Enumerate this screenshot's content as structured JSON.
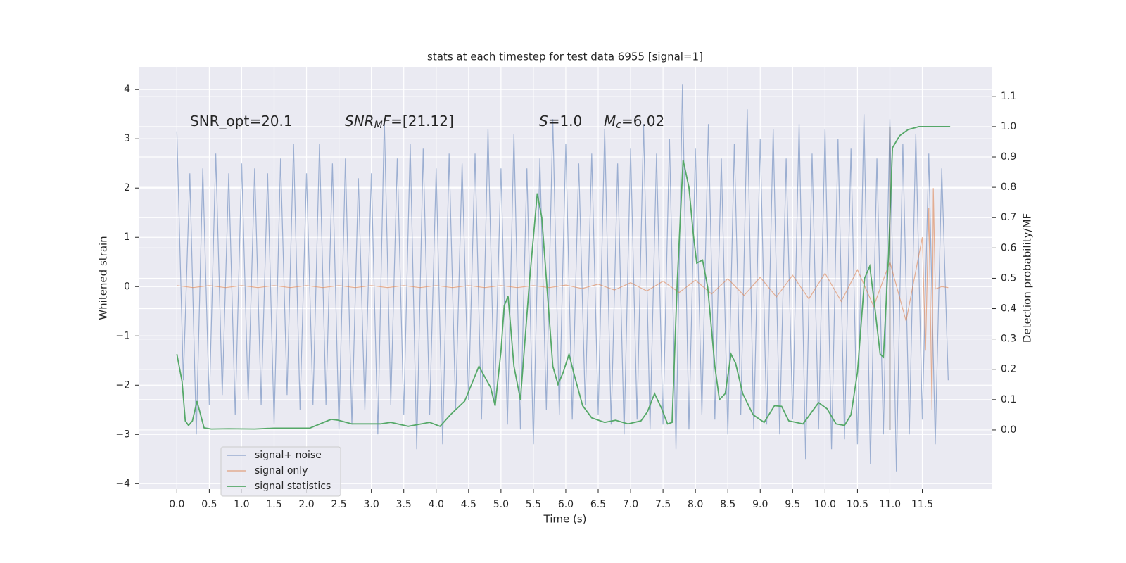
{
  "chart_data": {
    "type": "line",
    "title": "stats at each timestep for test data 6955 [signal=1]",
    "xlabel": "Time (s)",
    "ylabel": "Whitened strain",
    "y2label": "Detection probability/MF",
    "xlim": [
      -0.59,
      12.58
    ],
    "ylim": [
      -4.11,
      4.46
    ],
    "y2lim": [
      -0.195,
      1.197
    ],
    "xticks": [
      {
        "value": 0,
        "label": "0.0"
      },
      {
        "value": 0.5,
        "label": "0.5"
      },
      {
        "value": 1,
        "label": "1.0"
      },
      {
        "value": 1.5,
        "label": "1.5"
      },
      {
        "value": 2,
        "label": "2.0"
      },
      {
        "value": 2.5,
        "label": "2.5"
      },
      {
        "value": 3,
        "label": "3.0"
      },
      {
        "value": 3.5,
        "label": "3.5"
      },
      {
        "value": 4,
        "label": "4.0"
      },
      {
        "value": 4.5,
        "label": "4.5"
      },
      {
        "value": 5,
        "label": "5.0"
      },
      {
        "value": 5.5,
        "label": "5.5"
      },
      {
        "value": 6,
        "label": "6.0"
      },
      {
        "value": 6.5,
        "label": "6.5"
      },
      {
        "value": 7,
        "label": "7.0"
      },
      {
        "value": 7.5,
        "label": "7.5"
      },
      {
        "value": 8,
        "label": "8.0"
      },
      {
        "value": 8.5,
        "label": "8.5"
      },
      {
        "value": 9,
        "label": "9.0"
      },
      {
        "value": 9.5,
        "label": "9.5"
      },
      {
        "value": 10,
        "label": "10.0"
      },
      {
        "value": 10.5,
        "label": "10.5"
      },
      {
        "value": 11,
        "label": "11.0"
      },
      {
        "value": 11.5,
        "label": "11.5"
      }
    ],
    "yticks": [
      {
        "value": -4,
        "label": "−4"
      },
      {
        "value": -3,
        "label": "−3"
      },
      {
        "value": -2,
        "label": "−2"
      },
      {
        "value": -1,
        "label": "−1"
      },
      0,
      1,
      2,
      3,
      4
    ],
    "y2ticks": [
      {
        "value": 0,
        "label": "0.0"
      },
      {
        "value": 0.1,
        "label": "0.1"
      },
      {
        "value": 0.2,
        "label": "0.2"
      },
      {
        "value": 0.3,
        "label": "0.3"
      },
      {
        "value": 0.4,
        "label": "0.4"
      },
      {
        "value": 0.5,
        "label": "0.5"
      },
      {
        "value": 0.6,
        "label": "0.6"
      },
      {
        "value": 0.7,
        "label": "0.7"
      },
      {
        "value": 0.8,
        "label": "0.8"
      },
      {
        "value": 0.9,
        "label": "0.9"
      },
      {
        "value": 1,
        "label": "1.0"
      },
      {
        "value": 1.1,
        "label": "1.1"
      }
    ],
    "grid": true,
    "legend": "lower left",
    "series": [
      {
        "name": "signal+ noise",
        "color": "#4c72b0",
        "x": [
          0,
          0.1,
          0.2,
          0.3,
          0.4,
          0.5,
          0.6,
          0.7,
          0.8,
          0.9,
          1,
          1.1,
          1.2,
          1.3,
          1.4,
          1.5,
          1.6,
          1.7,
          1.8,
          1.9,
          2,
          2.1,
          2.2,
          2.3,
          2.4,
          2.5,
          2.6,
          2.7,
          2.8,
          2.9,
          3,
          3.1,
          3.2,
          3.3,
          3.4,
          3.5,
          3.6,
          3.7,
          3.8,
          3.9,
          4,
          4.1,
          4.2,
          4.3,
          4.4,
          4.5,
          4.6,
          4.7,
          4.8,
          4.9,
          5,
          5.1,
          5.2,
          5.3,
          5.4,
          5.5,
          5.6,
          5.7,
          5.8,
          5.9,
          6,
          6.1,
          6.2,
          6.3,
          6.4,
          6.5,
          6.6,
          6.7,
          6.8,
          6.9,
          7,
          7.1,
          7.2,
          7.3,
          7.4,
          7.5,
          7.6,
          7.7,
          7.8,
          7.9,
          8,
          8.1,
          8.2,
          8.3,
          8.4,
          8.5,
          8.6,
          8.7,
          8.8,
          8.9,
          9,
          9.1,
          9.2,
          9.3,
          9.4,
          9.5,
          9.6,
          9.7,
          9.8,
          9.9,
          10,
          10.1,
          10.2,
          10.3,
          10.4,
          10.5,
          10.6,
          10.7,
          10.8,
          10.9,
          11,
          11.1,
          11.2,
          11.3,
          11.4,
          11.5,
          11.6,
          11.7,
          11.8,
          11.9
        ],
        "values": [
          3.15,
          -1.9,
          2.3,
          -3.0,
          2.4,
          -2.4,
          2.7,
          -2.2,
          2.3,
          -2.6,
          2.5,
          -2.3,
          2.4,
          -2.4,
          2.3,
          -2.8,
          2.6,
          -2.2,
          2.9,
          -2.5,
          2.3,
          -2.4,
          2.9,
          -2.4,
          2.5,
          -2.9,
          2.6,
          -2.8,
          2.2,
          -2.5,
          2.3,
          -3.0,
          3.4,
          -2.4,
          2.6,
          -2.6,
          2.9,
          -3.3,
          2.8,
          -2.6,
          2.4,
          -3.2,
          2.7,
          -2.5,
          2.5,
          -2.3,
          2.7,
          -2.7,
          3.2,
          -2.4,
          2.4,
          -2.8,
          3.1,
          -2.9,
          2.4,
          -3.2,
          2.6,
          -2.5,
          3.4,
          -2.6,
          2.9,
          -2.7,
          2.5,
          -2.4,
          2.7,
          -2.6,
          3.2,
          -2.8,
          2.5,
          -3.0,
          2.8,
          -2.7,
          3.3,
          -2.9,
          2.7,
          -2.8,
          3.0,
          -3.3,
          4.1,
          -2.9,
          2.8,
          -2.6,
          3.3,
          -2.7,
          2.6,
          -3.0,
          2.9,
          -2.6,
          3.6,
          -2.9,
          3.0,
          -2.8,
          3.2,
          -3.0,
          2.6,
          -2.7,
          3.3,
          -3.5,
          2.7,
          -2.9,
          3.2,
          -3.3,
          3.0,
          -3.1,
          2.8,
          -3.2,
          3.5,
          -3.6,
          2.6,
          -3.0,
          3.4,
          -3.75,
          2.9,
          -3.0,
          3.1,
          -2.7,
          2.7,
          -3.2,
          2.4,
          -1.9
        ]
      },
      {
        "name": "signal only",
        "color": "#dd8452",
        "x": [
          0,
          0.25,
          0.5,
          0.75,
          1,
          1.25,
          1.5,
          1.75,
          2,
          2.25,
          2.5,
          2.75,
          3,
          3.25,
          3.5,
          3.75,
          4,
          4.25,
          4.5,
          4.75,
          5,
          5.25,
          5.5,
          5.75,
          6,
          6.25,
          6.5,
          6.75,
          7,
          7.25,
          7.5,
          7.75,
          8,
          8.25,
          8.5,
          8.75,
          9,
          9.25,
          9.5,
          9.75,
          10,
          10.25,
          10.5,
          10.75,
          11,
          11.25,
          11.5,
          11.55,
          11.6,
          11.65,
          11.67,
          11.7,
          11.8,
          11.9
        ],
        "values": [
          0.02,
          -0.02,
          0.02,
          -0.02,
          0.02,
          -0.02,
          0.02,
          -0.02,
          0.02,
          -0.02,
          0.02,
          -0.02,
          0.02,
          -0.02,
          0.02,
          -0.02,
          0.02,
          -0.02,
          0.02,
          -0.02,
          0.02,
          -0.02,
          0.02,
          -0.02,
          0.03,
          -0.04,
          0.05,
          -0.07,
          0.08,
          -0.09,
          0.11,
          -0.12,
          0.13,
          -0.15,
          0.16,
          -0.18,
          0.19,
          -0.21,
          0.23,
          -0.25,
          0.27,
          -0.3,
          0.34,
          -0.4,
          0.5,
          -0.7,
          1.0,
          -1.3,
          1.6,
          -2.5,
          2.0,
          -0.05,
          0,
          -0.02
        ]
      },
      {
        "name": "signal statistics",
        "color": "#55a868",
        "axis": "y2",
        "x": [
          0,
          0.08,
          0.13,
          0.18,
          0.24,
          0.31,
          0.42,
          0.53,
          0.8,
          1.2,
          1.5,
          2.05,
          2.38,
          2.49,
          2.7,
          3.14,
          3.3,
          3.57,
          3.9,
          4.06,
          4.22,
          4.44,
          4.66,
          4.84,
          4.91,
          5,
          5.05,
          5.11,
          5.2,
          5.3,
          5.44,
          5.56,
          5.63,
          5.8,
          5.88,
          5.96,
          6.05,
          6.12,
          6.26,
          6.4,
          6.6,
          6.77,
          6.96,
          7.16,
          7.26,
          7.37,
          7.48,
          7.57,
          7.64,
          7.72,
          7.81,
          7.9,
          7.97,
          8.02,
          8.11,
          8.19,
          8.3,
          8.37,
          8.46,
          8.55,
          8.62,
          8.73,
          8.89,
          9.06,
          9.22,
          9.33,
          9.44,
          9.66,
          9.9,
          10.03,
          10.17,
          10.3,
          10.4,
          10.5,
          10.61,
          10.69,
          10.77,
          10.85,
          10.9,
          10.98,
          11.04,
          11.15,
          11.28,
          11.45,
          11.93
        ],
        "values": [
          0.25,
          0.16,
          0.03,
          0.015,
          0.03,
          0.095,
          0.007,
          0.003,
          0.004,
          0.003,
          0.006,
          0.006,
          0.035,
          0.032,
          0.02,
          0.02,
          0.025,
          0.012,
          0.025,
          0.012,
          0.05,
          0.095,
          0.21,
          0.14,
          0.08,
          0.26,
          0.41,
          0.44,
          0.21,
          0.1,
          0.49,
          0.78,
          0.7,
          0.21,
          0.15,
          0.19,
          0.25,
          0.19,
          0.08,
          0.04,
          0.025,
          0.032,
          0.02,
          0.03,
          0.06,
          0.12,
          0.07,
          0.02,
          0.025,
          0.49,
          0.89,
          0.8,
          0.64,
          0.55,
          0.56,
          0.47,
          0.21,
          0.1,
          0.12,
          0.25,
          0.22,
          0.12,
          0.05,
          0.025,
          0.08,
          0.078,
          0.03,
          0.02,
          0.09,
          0.07,
          0.02,
          0.015,
          0.05,
          0.19,
          0.5,
          0.54,
          0.4,
          0.25,
          0.24,
          0.58,
          0.93,
          0.97,
          0.99,
          1.0,
          1.0
        ]
      }
    ],
    "vline": {
      "x": 11.0,
      "y2": [
        0,
        1
      ],
      "color": "#333333"
    },
    "annotations": [
      {
        "parts": [
          {
            "text": "SNR_opt=20.1"
          }
        ]
      },
      {
        "parts": [
          {
            "text": "SNR",
            "style": "italic"
          },
          {
            "text": "M",
            "style": "sub"
          },
          {
            "text": "F",
            "style": "italic"
          },
          {
            "text": "=[21.12]"
          }
        ]
      },
      {
        "parts": [
          {
            "text": "S",
            "style": "italic"
          },
          {
            "text": "=1.0"
          }
        ]
      },
      {
        "parts": [
          {
            "text": "M",
            "style": "italic"
          },
          {
            "text": "c",
            "style": "sub"
          },
          {
            "text": "=6.02"
          }
        ]
      }
    ]
  }
}
